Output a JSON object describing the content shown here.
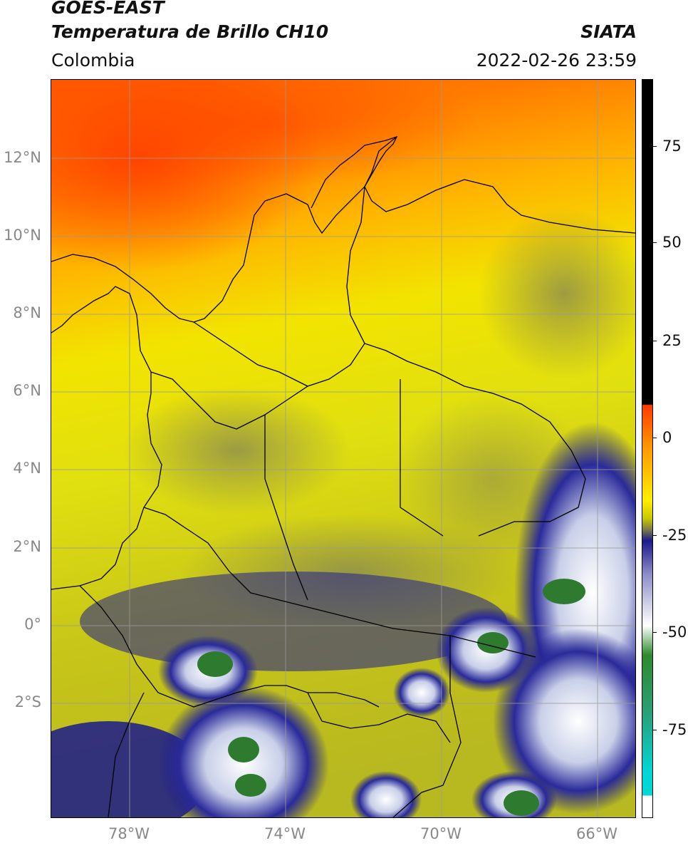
{
  "header": {
    "satellite": "GOES-EAST",
    "product": "Temperatura de Brillo CH10",
    "region": "Colombia",
    "agency": "SIATA",
    "datetime": "2022-02-26 23:59"
  },
  "axes": {
    "lat_labels": [
      "12°N",
      "10°N",
      "8°N",
      "6°N",
      "4°N",
      "2°N",
      "0°",
      "2°S"
    ],
    "lon_labels": [
      "78°W",
      "74°W",
      "70°W",
      "66°W"
    ],
    "lon_range": [
      -80,
      -65
    ],
    "lat_range": [
      -5,
      14
    ],
    "grid": true
  },
  "colorbar": {
    "ticks": [
      "75",
      "50",
      "25",
      "0",
      "-25",
      "-50",
      "-75"
    ],
    "tick_values": [
      75,
      50,
      25,
      0,
      -25,
      -50,
      -75
    ],
    "range": [
      -95,
      90
    ],
    "colors": {
      "above": "#000000",
      "hot": "#ff3a00",
      "warm": "#ff9a00",
      "mid": "#ffee00",
      "cool": "#c8c800",
      "olive": "#7a7a4a",
      "deep": "#1a1a8c",
      "cold": "#ffffff",
      "green": "#2e8a2e",
      "cyan": "#00d8d8"
    }
  }
}
